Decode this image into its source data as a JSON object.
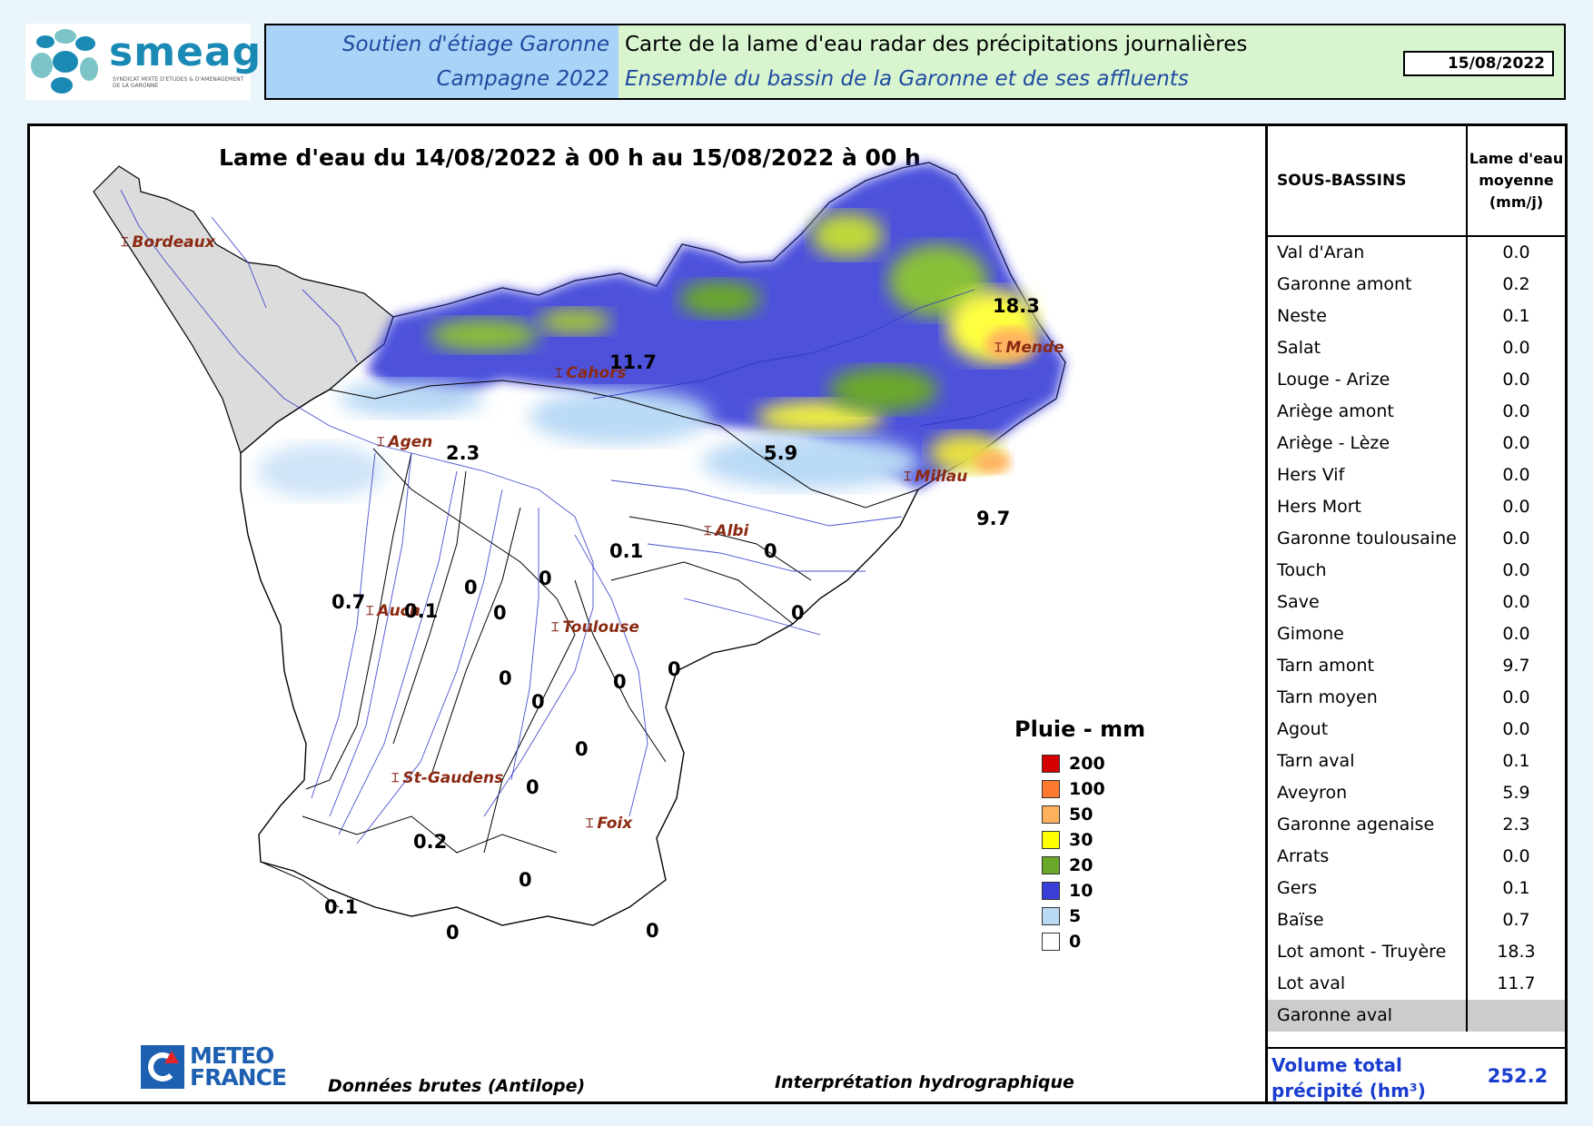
{
  "logo": {
    "name": "smeag",
    "tagline": "SYNDICAT MIXTE D'ETUDES & D'AMENAGEMENT DE LA GARONNE"
  },
  "header": {
    "left_line1": "Soutien d'étiage Garonne",
    "left_line2": "Campagne 2022",
    "right_line1": "Carte de la lame d'eau radar des précipitations journalières",
    "right_line2": "Ensemble du bassin de la Garonne et de ses affluents",
    "date": "15/08/2022"
  },
  "map": {
    "title": "Lame d'eau du 14/08/2022 à 00 h au 15/08/2022 à 00 h",
    "cities": [
      {
        "name": "Bordeaux"
      },
      {
        "name": "Cahors"
      },
      {
        "name": "Mende"
      },
      {
        "name": "Agen"
      },
      {
        "name": "Millau"
      },
      {
        "name": "Albi"
      },
      {
        "name": "Auch"
      },
      {
        "name": "Toulouse"
      },
      {
        "name": "St-Gaudens"
      },
      {
        "name": "Foix"
      }
    ],
    "basin_values": [
      "18.3",
      "11.7",
      "2.3",
      "5.9",
      "9.7",
      "0.1",
      "0",
      "0",
      "0.7",
      "0.1",
      "0",
      "0",
      "0",
      "0",
      "0",
      "0",
      "0",
      "0",
      "0",
      "0.2",
      "0",
      "0.1",
      "0",
      "0"
    ]
  },
  "legend": {
    "title": "Pluie - mm",
    "items": [
      {
        "value": "200",
        "color": "#d40000"
      },
      {
        "value": "100",
        "color": "#ff7a2e"
      },
      {
        "value": "50",
        "color": "#ffb25e"
      },
      {
        "value": "30",
        "color": "#ffff00"
      },
      {
        "value": "20",
        "color": "#6aa82a"
      },
      {
        "value": "10",
        "color": "#3a3fd8"
      },
      {
        "value": "5",
        "color": "#b9d9f5"
      },
      {
        "value": "0",
        "color": "#ffffff"
      }
    ]
  },
  "footer": {
    "logo_line1": "METEO",
    "logo_line2": "FRANCE",
    "source": "Données brutes (Antilope)",
    "interpretation": "Interprétation hydrographique"
  },
  "table": {
    "header_name": "SOUS-BASSINS",
    "header_value_l1": "Lame d'eau",
    "header_value_l2": "moyenne",
    "header_value_l3": "(mm/j)",
    "rows": [
      {
        "name": "Val d'Aran",
        "value": "0.0"
      },
      {
        "name": "Garonne amont",
        "value": "0.2"
      },
      {
        "name": "Neste",
        "value": "0.1"
      },
      {
        "name": "Salat",
        "value": "0.0"
      },
      {
        "name": "Louge - Arize",
        "value": "0.0"
      },
      {
        "name": "Ariège amont",
        "value": "0.0"
      },
      {
        "name": "Ariège - Lèze",
        "value": "0.0"
      },
      {
        "name": "Hers Vif",
        "value": "0.0"
      },
      {
        "name": "Hers Mort",
        "value": "0.0"
      },
      {
        "name": "Garonne toulousaine",
        "value": "0.0"
      },
      {
        "name": "Touch",
        "value": "0.0"
      },
      {
        "name": "Save",
        "value": "0.0"
      },
      {
        "name": "Gimone",
        "value": "0.0"
      },
      {
        "name": "Tarn amont",
        "value": "9.7"
      },
      {
        "name": "Tarn moyen",
        "value": "0.0"
      },
      {
        "name": "Agout",
        "value": "0.0"
      },
      {
        "name": "Tarn aval",
        "value": "0.1"
      },
      {
        "name": "Aveyron",
        "value": "5.9"
      },
      {
        "name": "Garonne agenaise",
        "value": "2.3"
      },
      {
        "name": "Arrats",
        "value": "0.0"
      },
      {
        "name": "Gers",
        "value": "0.1"
      },
      {
        "name": "Baïse",
        "value": "0.7"
      },
      {
        "name": "Lot amont - Truyère",
        "value": "18.3"
      },
      {
        "name": "Lot aval",
        "value": "11.7"
      },
      {
        "name": "Garonne aval",
        "value": ""
      }
    ],
    "total_label_l1": "Volume total",
    "total_label_l2": "précipité (hm³)",
    "total_value": "252.2"
  }
}
